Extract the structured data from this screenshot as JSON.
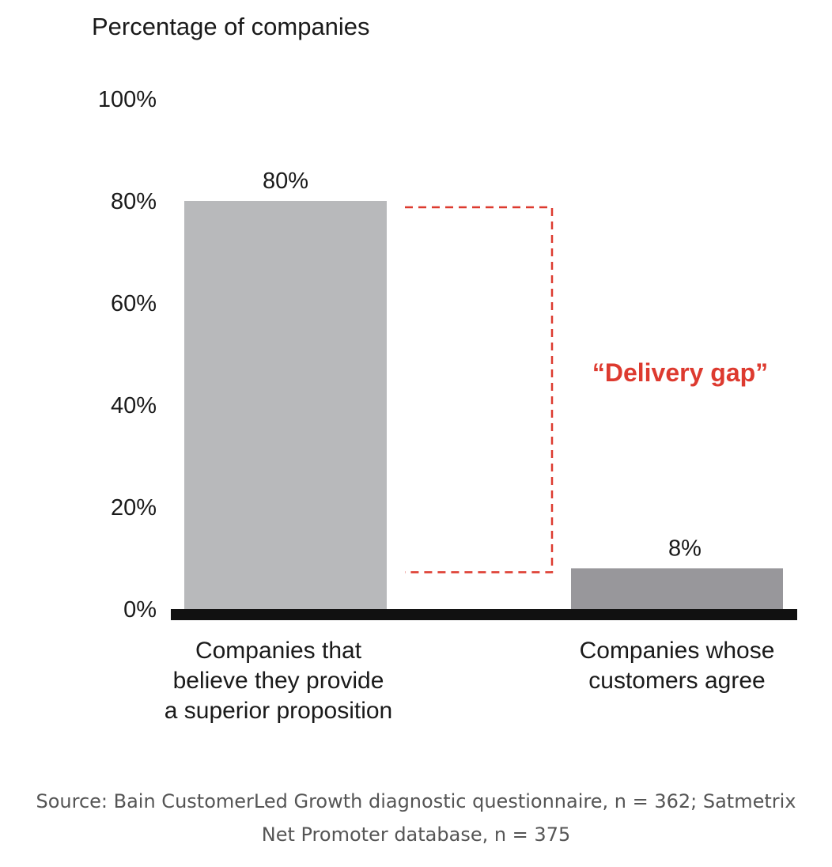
{
  "chart_data": {
    "type": "bar",
    "ylabel": "Percentage of companies",
    "ylim": [
      0,
      100
    ],
    "yticks": [
      "0%",
      "20%",
      "40%",
      "60%",
      "80%",
      "100%"
    ],
    "ytick_values": [
      0,
      20,
      40,
      60,
      80,
      100
    ],
    "grid": false,
    "categories": [
      [
        "Companies that",
        "believe they provide",
        "a superior proposition"
      ],
      [
        "Companies whose",
        "customers agree"
      ]
    ],
    "values": [
      80,
      8
    ],
    "data_labels": [
      "80%",
      "8%"
    ],
    "bar_colors": [
      "#b8b9bb",
      "#98979b"
    ],
    "axis_color": "#111111",
    "annotation": {
      "text": "“Delivery gap”",
      "color": "#dd3a2f",
      "from_value": 80,
      "to_value": 8
    }
  },
  "source": {
    "lines": [
      "Source: Bain CustomerLed Growth diagnostic questionnaire, n = 362; Satmetrix",
      "Net Promoter database, n = 375"
    ]
  }
}
